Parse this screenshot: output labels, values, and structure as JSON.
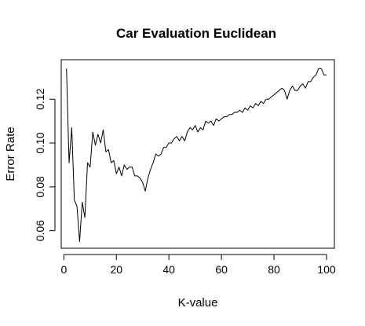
{
  "chart_data": {
    "type": "line",
    "title": "Car Evaluation Euclidean",
    "xlabel": "K-value",
    "ylabel": "Error Rate",
    "xlim": [
      -1,
      103
    ],
    "ylim": [
      0.052,
      0.138
    ],
    "xticks": [
      {
        "value": 0,
        "label": "0"
      },
      {
        "value": 20,
        "label": "20"
      },
      {
        "value": 40,
        "label": "40"
      },
      {
        "value": 60,
        "label": "60"
      },
      {
        "value": 80,
        "label": "80"
      },
      {
        "value": 100,
        "label": "100"
      }
    ],
    "yticks": [
      {
        "value": 0.06,
        "label": "0.06"
      },
      {
        "value": 0.08,
        "label": "0.08"
      },
      {
        "value": 0.1,
        "label": "0.10"
      },
      {
        "value": 0.12,
        "label": "0.12"
      }
    ],
    "grid": false,
    "series": [
      {
        "color": "#000000",
        "x": [
          1,
          2,
          3,
          4,
          5,
          6,
          7,
          8,
          9,
          10,
          11,
          12,
          13,
          14,
          15,
          16,
          17,
          18,
          19,
          20,
          21,
          22,
          23,
          24,
          25,
          26,
          27,
          28,
          29,
          30,
          31,
          32,
          33,
          34,
          35,
          36,
          37,
          38,
          39,
          40,
          41,
          42,
          43,
          44,
          45,
          46,
          47,
          48,
          49,
          50,
          51,
          52,
          53,
          54,
          55,
          56,
          57,
          58,
          59,
          60,
          61,
          62,
          63,
          64,
          65,
          66,
          67,
          68,
          69,
          70,
          71,
          72,
          73,
          74,
          75,
          76,
          77,
          78,
          79,
          80,
          81,
          82,
          83,
          84,
          85,
          86,
          87,
          88,
          89,
          90,
          91,
          92,
          93,
          94,
          95,
          96,
          97,
          98,
          99,
          100
        ],
        "y": [
          0.134,
          0.091,
          0.107,
          0.074,
          0.071,
          0.055,
          0.073,
          0.066,
          0.091,
          0.089,
          0.105,
          0.099,
          0.104,
          0.1,
          0.106,
          0.096,
          0.097,
          0.091,
          0.092,
          0.086,
          0.089,
          0.085,
          0.09,
          0.088,
          0.089,
          0.089,
          0.085,
          0.085,
          0.084,
          0.082,
          0.078,
          0.084,
          0.088,
          0.091,
          0.095,
          0.094,
          0.095,
          0.098,
          0.098,
          0.1,
          0.1,
          0.102,
          0.103,
          0.101,
          0.103,
          0.101,
          0.105,
          0.107,
          0.106,
          0.108,
          0.105,
          0.107,
          0.106,
          0.11,
          0.109,
          0.11,
          0.108,
          0.111,
          0.11,
          0.111,
          0.112,
          0.112,
          0.113,
          0.113,
          0.114,
          0.114,
          0.115,
          0.114,
          0.116,
          0.115,
          0.117,
          0.116,
          0.118,
          0.117,
          0.119,
          0.118,
          0.12,
          0.12,
          0.121,
          0.122,
          0.123,
          0.124,
          0.125,
          0.124,
          0.12,
          0.124,
          0.126,
          0.124,
          0.124,
          0.126,
          0.127,
          0.125,
          0.128,
          0.128,
          0.13,
          0.131,
          0.134,
          0.134,
          0.131,
          0.131
        ]
      }
    ]
  }
}
